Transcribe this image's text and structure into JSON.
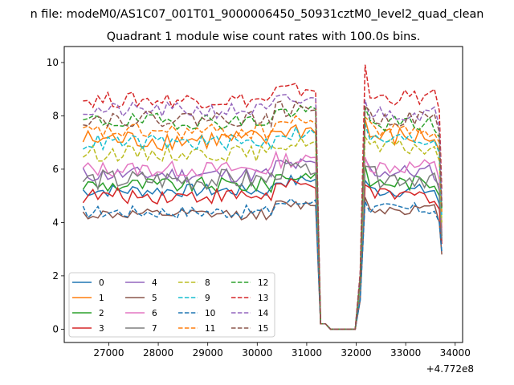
{
  "figure": {
    "title": "n file: modeM0/AS1C07_001T01_9000006450_50931cztM0_level2_quad_clean",
    "subtitle": "Quadrant 1 module wise count rates with 100.0s bins."
  },
  "chart_data": {
    "type": "line",
    "x_offset_label": "+4.772e8",
    "xlim": [
      26100,
      34150
    ],
    "ylim": [
      -0.5,
      10.6
    ],
    "x_ticks": [
      27000,
      28000,
      29000,
      30000,
      31000,
      32000,
      33000,
      34000
    ],
    "x_tick_labels": [
      "27000",
      "28000",
      "29000",
      "30000",
      "31000",
      "32000",
      "33000",
      "34000"
    ],
    "y_ticks": [
      0,
      2,
      4,
      6,
      8,
      10
    ],
    "y_tick_labels": [
      "0",
      "2",
      "4",
      "6",
      "8",
      "10"
    ],
    "legend_position": "lower-left",
    "x": [
      26480,
      26580,
      26680,
      26780,
      26880,
      26980,
      27080,
      27180,
      27280,
      27380,
      27480,
      27580,
      27680,
      27780,
      27880,
      27980,
      28080,
      28180,
      28280,
      28380,
      28480,
      28580,
      28680,
      28780,
      28880,
      28980,
      29080,
      29180,
      29280,
      29380,
      29480,
      29580,
      29680,
      29780,
      29880,
      29980,
      30080,
      30180,
      30280,
      30380,
      30480,
      30580,
      30680,
      30780,
      30880,
      30980,
      31080,
      31180,
      31280,
      31380,
      31480,
      31580,
      31680,
      31780,
      31880,
      31980,
      32080,
      32180,
      32280,
      32380,
      32480,
      32580,
      32680,
      32780,
      32880,
      32980,
      33080,
      33180,
      33280,
      33380,
      33480,
      33580,
      33680,
      33730
    ],
    "series": [
      {
        "name": "0",
        "color": "#1f77b4",
        "dash": "solid",
        "base": 5.2,
        "peak": 5.6,
        "end": 5.2,
        "final": 3.3,
        "amp": 0.25
      },
      {
        "name": "1",
        "color": "#ff7f0e",
        "dash": "solid",
        "base": 7.1,
        "peak": 7.8,
        "end": 7.2,
        "final": 3.8,
        "amp": 0.4
      },
      {
        "name": "2",
        "color": "#2ca02c",
        "dash": "solid",
        "base": 5.4,
        "peak": 6.0,
        "end": 5.5,
        "final": 3.5,
        "amp": 0.3
      },
      {
        "name": "3",
        "color": "#d62728",
        "dash": "solid",
        "base": 5.0,
        "peak": 5.5,
        "end": 5.0,
        "final": 3.2,
        "amp": 0.3
      },
      {
        "name": "4",
        "color": "#9467bd",
        "dash": "solid",
        "base": 5.8,
        "peak": 6.4,
        "end": 5.9,
        "final": 3.6,
        "amp": 0.3
      },
      {
        "name": "5",
        "color": "#8c564b",
        "dash": "solid",
        "base": 4.3,
        "peak": 4.9,
        "end": 4.5,
        "final": 2.8,
        "amp": 0.2
      },
      {
        "name": "6",
        "color": "#e377c2",
        "dash": "solid",
        "base": 6.0,
        "peak": 6.6,
        "end": 6.1,
        "final": 3.7,
        "amp": 0.3
      },
      {
        "name": "7",
        "color": "#7f7f7f",
        "dash": "solid",
        "base": 5.6,
        "peak": 6.2,
        "end": 5.7,
        "final": 3.4,
        "amp": 0.4
      },
      {
        "name": "8",
        "color": "#bcbd22",
        "dash": "dashed",
        "base": 6.6,
        "peak": 7.2,
        "end": 6.8,
        "final": 4.0,
        "amp": 0.3
      },
      {
        "name": "9",
        "color": "#17becf",
        "dash": "dashed",
        "base": 7.0,
        "peak": 7.6,
        "end": 7.1,
        "final": 4.2,
        "amp": 0.3
      },
      {
        "name": "10",
        "color": "#1f77b4",
        "dash": "dashed",
        "base": 4.4,
        "peak": 4.9,
        "end": 4.5,
        "final": 2.9,
        "amp": 0.25
      },
      {
        "name": "11",
        "color": "#ff7f0e",
        "dash": "dashed",
        "base": 7.4,
        "peak": 8.0,
        "end": 7.5,
        "final": 4.4,
        "amp": 0.3
      },
      {
        "name": "12",
        "color": "#2ca02c",
        "dash": "dashed",
        "base": 7.8,
        "peak": 8.3,
        "end": 7.7,
        "final": 4.5,
        "amp": 0.3
      },
      {
        "name": "13",
        "color": "#d62728",
        "dash": "dashed",
        "base": 8.6,
        "peak": 9.8,
        "end": 8.7,
        "final": 5.2,
        "amp": 0.3
      },
      {
        "name": "14",
        "color": "#9467bd",
        "dash": "dashed",
        "base": 8.2,
        "peak": 8.7,
        "end": 8.1,
        "final": 4.8,
        "amp": 0.3
      },
      {
        "name": "15",
        "color": "#8c564b",
        "dash": "dashed",
        "base": 7.9,
        "peak": 8.4,
        "end": 7.9,
        "final": 4.6,
        "amp": 0.3
      }
    ]
  }
}
